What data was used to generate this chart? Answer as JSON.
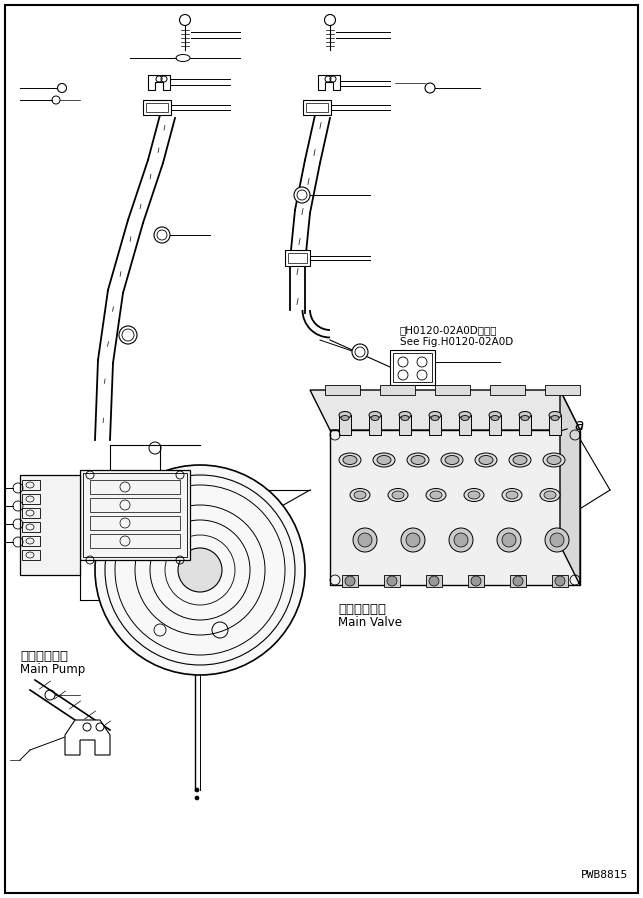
{
  "title": "",
  "background_color": "#ffffff",
  "border_color": "#000000",
  "line_color": "#000000",
  "text_color": "#000000",
  "watermark": "PWB8815",
  "label_main_pump_jp": "メインポンプ",
  "label_main_pump_en": "Main Pump",
  "label_main_valve_jp": "メインバルブ",
  "label_main_valve_en": "Main Valve",
  "label_see_fig": "第H0120-02A0D図参照",
  "label_see_fig2": "See Fig.H0120-02A0D",
  "label_a": "a",
  "figsize": [
    6.43,
    8.98
  ],
  "dpi": 100
}
